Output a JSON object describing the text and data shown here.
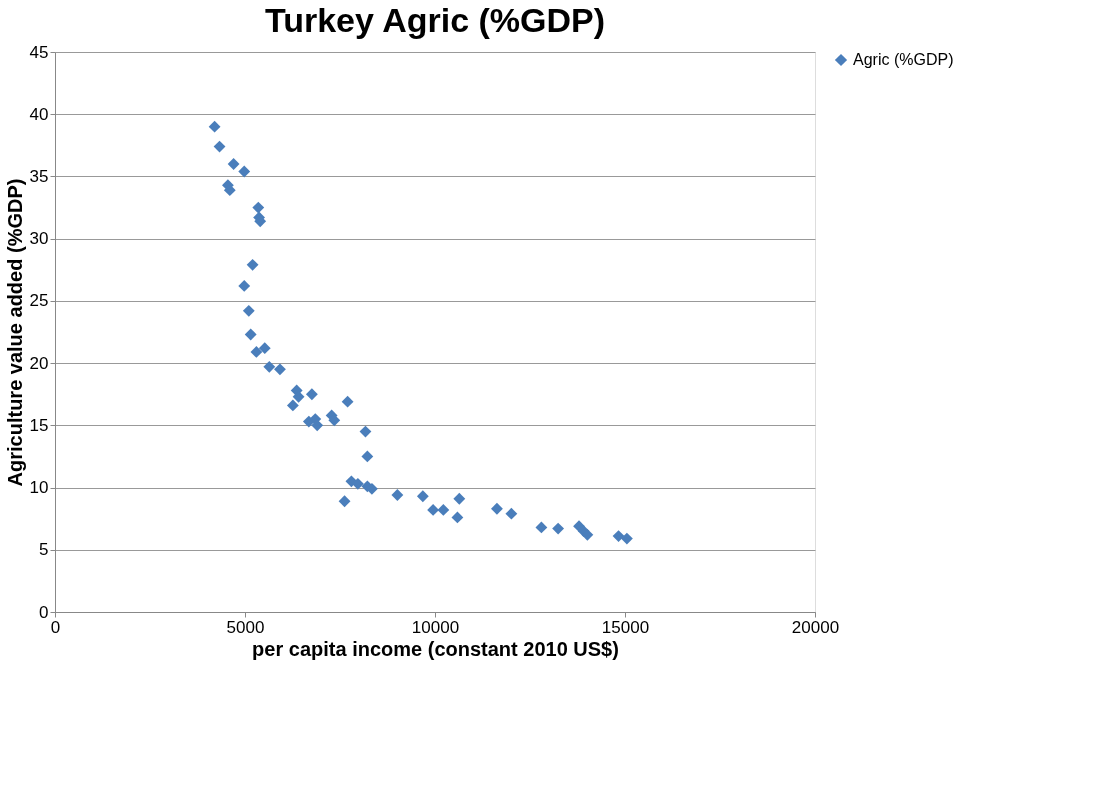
{
  "chart_data": {
    "type": "scatter",
    "title": "Turkey Agric (%GDP)",
    "xlabel": "per capita income (constant 2010 US$)",
    "ylabel": "Agriculture value added (%GDP)",
    "x": [
      4200,
      4330,
      4550,
      4600,
      4700,
      4980,
      5350,
      5370,
      5400,
      5200,
      4980,
      5100,
      5150,
      5300,
      5520,
      5640,
      5920,
      6360,
      6410,
      6760,
      6260,
      6680,
      6850,
      6900,
      7280,
      7350,
      7700,
      8170,
      8220,
      7620,
      7800,
      7970,
      8220,
      8340,
      9010,
      9680,
      9950,
      10220,
      10590,
      10640,
      11630,
      12010,
      12800,
      13240,
      13790,
      13910,
      14010,
      14830,
      15050
    ],
    "series": [
      {
        "name": "Agric (%GDP)",
        "color": "#4a7ebb",
        "values": [
          39.0,
          37.4,
          34.3,
          33.9,
          36.0,
          35.4,
          32.5,
          31.7,
          31.4,
          27.9,
          26.2,
          24.2,
          22.3,
          20.9,
          21.2,
          19.7,
          19.5,
          17.8,
          17.3,
          17.5,
          16.6,
          15.3,
          15.5,
          15.0,
          15.8,
          15.4,
          16.9,
          14.5,
          12.5,
          8.9,
          10.5,
          10.3,
          10.1,
          9.9,
          9.4,
          9.3,
          8.2,
          8.2,
          7.6,
          9.1,
          8.3,
          7.9,
          6.8,
          6.7,
          6.9,
          6.5,
          6.2,
          6.1,
          5.9
        ]
      }
    ],
    "xlim": [
      0,
      20000
    ],
    "xticks": [
      0,
      5000,
      10000,
      15000,
      20000
    ],
    "ylim": [
      0,
      45
    ],
    "yticks": [
      0,
      5,
      10,
      15,
      20,
      25,
      30,
      35,
      40,
      45
    ],
    "grid": "y",
    "legend": "right",
    "marker": "diamond"
  }
}
